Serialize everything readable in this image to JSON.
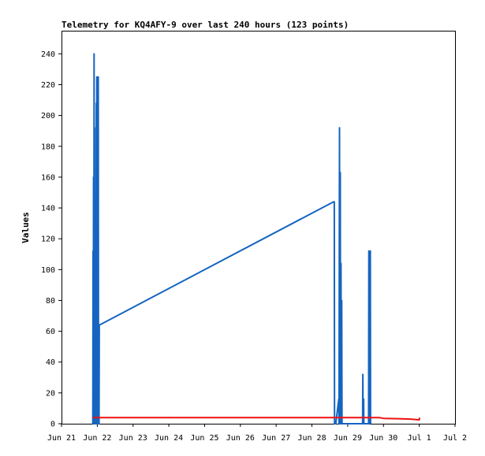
{
  "chart_data": {
    "type": "line",
    "title": "Telemetry for KQ4AFY-9 over last 240 hours (123 points)",
    "xlabel": "",
    "ylabel": "Values",
    "x_ticks": [
      "Jun 21",
      "Jun 22",
      "Jun 23",
      "Jun 24",
      "Jun 25",
      "Jun 26",
      "Jun 27",
      "Jun 28",
      "Jun 29",
      "Jun 30",
      "Jul 1",
      "Jul 2"
    ],
    "xlim": [
      "2023-06-21T00:00",
      "2023-07-02T00:00"
    ],
    "y_ticks": [
      0,
      20,
      40,
      60,
      80,
      100,
      120,
      140,
      160,
      180,
      200,
      220,
      240
    ],
    "ylim": [
      0,
      255
    ],
    "grid": false,
    "legend": "none",
    "series": [
      {
        "color": "#1565c0",
        "points": [
          [
            "2023-06-21T21:00",
            0
          ],
          [
            "2023-06-21T21:10",
            112
          ],
          [
            "2023-06-21T21:20",
            0
          ],
          [
            "2023-06-21T21:30",
            160
          ],
          [
            "2023-06-21T21:40",
            0
          ],
          [
            "2023-06-21T21:50",
            240
          ],
          [
            "2023-06-21T22:00",
            0
          ],
          [
            "2023-06-21T22:10",
            192
          ],
          [
            "2023-06-21T22:20",
            0
          ],
          [
            "2023-06-21T22:30",
            56
          ],
          [
            "2023-06-21T22:45",
            0
          ],
          [
            "2023-06-21T23:00",
            145
          ],
          [
            "2023-06-21T23:10",
            0
          ],
          [
            "2023-06-21T23:20",
            208
          ],
          [
            "2023-06-21T23:30",
            0
          ],
          [
            "2023-06-21T23:40",
            225
          ],
          [
            "2023-06-21T23:50",
            0
          ],
          [
            "2023-06-22T00:00",
            225
          ],
          [
            "2023-06-22T00:10",
            0
          ],
          [
            "2023-06-22T00:20",
            225
          ],
          [
            "2023-06-22T00:30",
            0
          ],
          [
            "2023-06-22T00:40",
            225
          ],
          [
            "2023-06-22T00:50",
            32
          ],
          [
            "2023-06-22T01:00",
            64
          ],
          [
            "2023-06-22T01:10",
            0
          ],
          [
            "2023-06-22T01:20",
            64
          ],
          [
            "2023-06-28T14:30",
            144
          ],
          [
            "2023-06-28T15:00",
            144
          ],
          [
            "2023-06-28T15:10",
            0
          ],
          [
            "2023-06-28T16:00",
            0
          ],
          [
            "2023-06-28T18:00",
            16
          ],
          [
            "2023-06-28T18:10",
            0
          ],
          [
            "2023-06-28T18:30",
            192
          ],
          [
            "2023-06-28T18:40",
            0
          ],
          [
            "2023-06-28T19:00",
            163
          ],
          [
            "2023-06-28T19:10",
            0
          ],
          [
            "2023-06-28T19:30",
            104
          ],
          [
            "2023-06-28T19:40",
            0
          ],
          [
            "2023-06-28T20:00",
            80
          ],
          [
            "2023-06-28T20:10",
            0
          ],
          [
            "2023-06-29T10:00",
            0
          ],
          [
            "2023-06-29T10:10",
            32
          ],
          [
            "2023-06-29T10:20",
            0
          ],
          [
            "2023-06-29T10:40",
            16
          ],
          [
            "2023-06-29T10:50",
            0
          ],
          [
            "2023-06-29T14:00",
            0
          ],
          [
            "2023-06-29T14:10",
            112
          ],
          [
            "2023-06-29T14:20",
            0
          ],
          [
            "2023-06-29T14:40",
            112
          ],
          [
            "2023-06-29T14:50",
            0
          ],
          [
            "2023-06-29T15:10",
            112
          ],
          [
            "2023-06-29T15:20",
            0
          ]
        ]
      },
      {
        "color": "#ee1111",
        "points": [
          [
            "2023-06-21T21:00",
            4
          ],
          [
            "2023-06-29T21:00",
            4
          ],
          [
            "2023-06-30T00:00",
            3.5
          ],
          [
            "2023-06-30T18:00",
            3
          ],
          [
            "2023-07-01T00:00",
            2.5
          ],
          [
            "2023-07-01T00:10",
            4
          ]
        ]
      }
    ]
  }
}
